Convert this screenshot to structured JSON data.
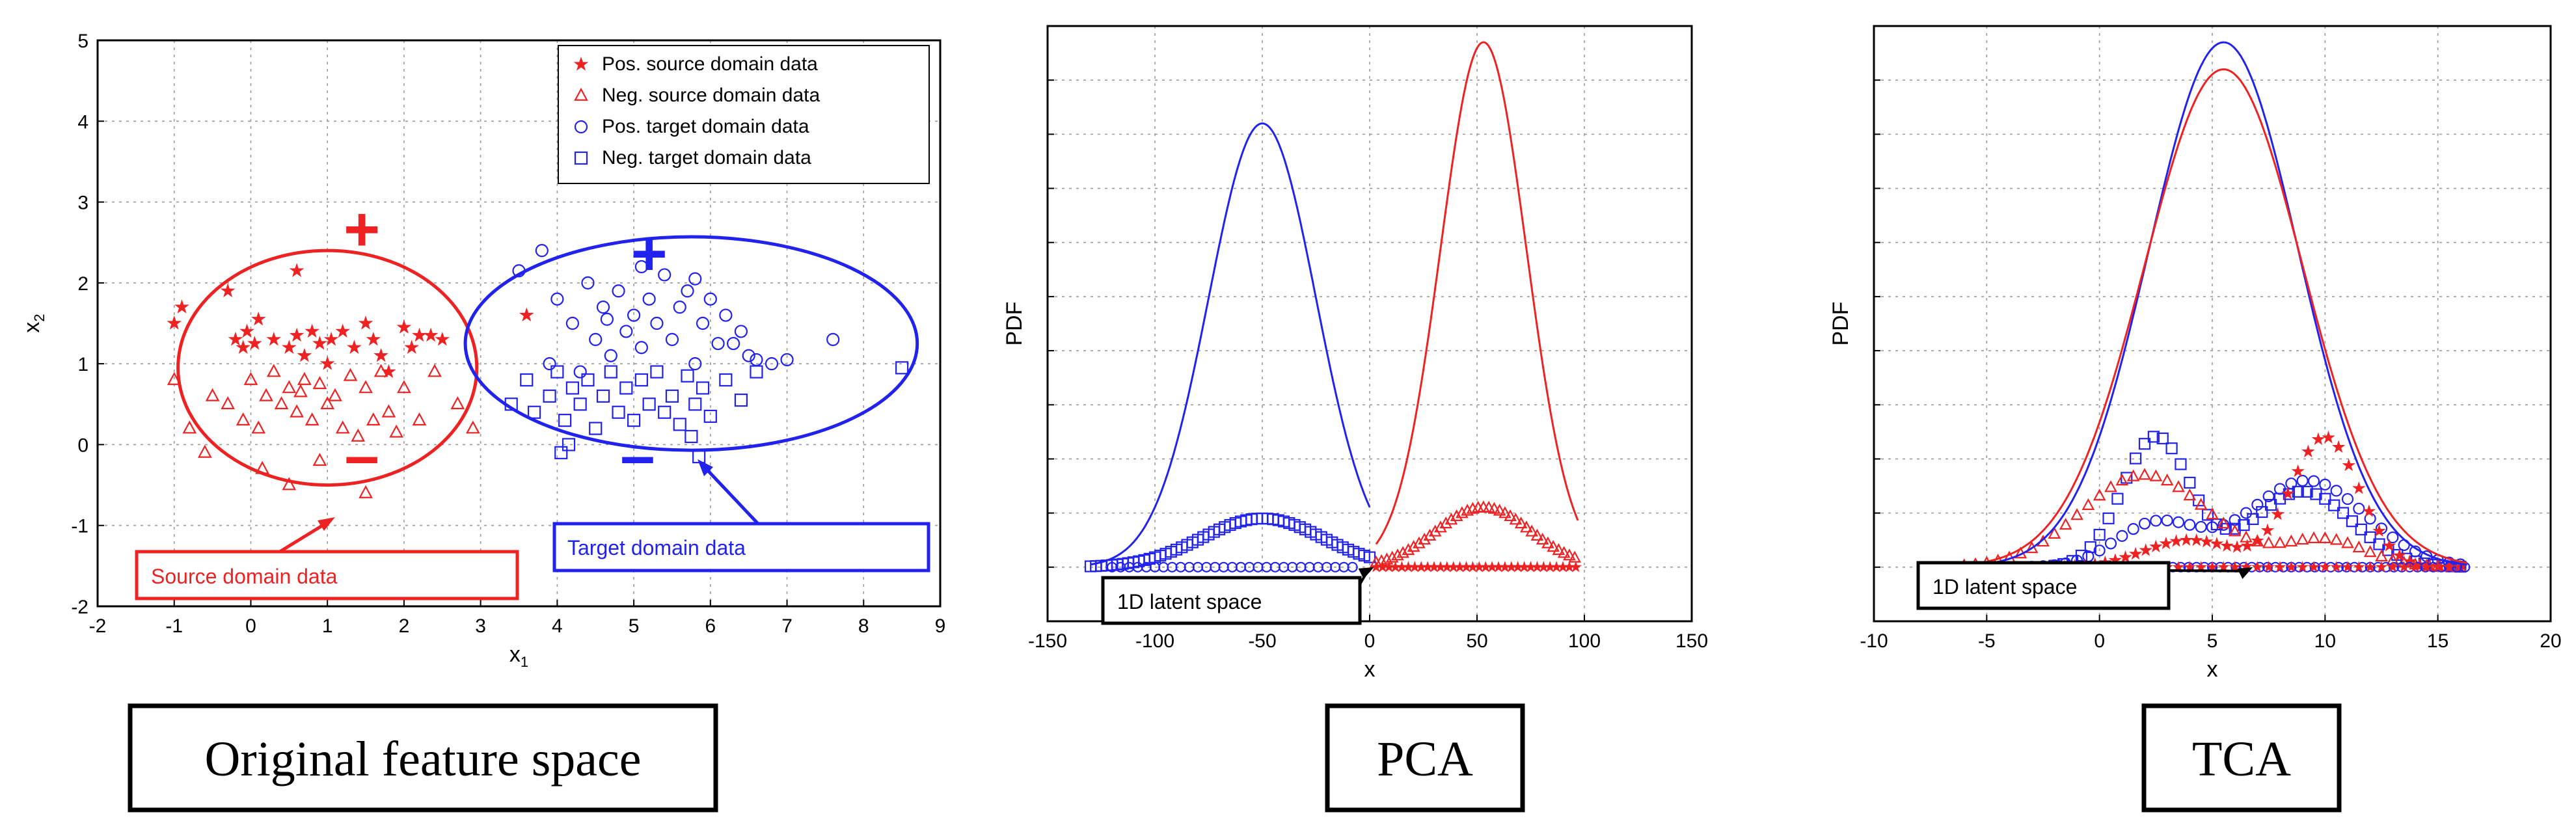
{
  "colors": {
    "red": "#ee2222",
    "blue": "#2222ee",
    "grid": "#9a9a9a"
  },
  "chart_data": [
    {
      "type": "scatter",
      "caption": "Original feature space",
      "xlabel": "x",
      "xlabel_sub": "1",
      "ylabel": "x",
      "ylabel_sub": "2",
      "xlim": [
        -2,
        9
      ],
      "ylim": [
        -2,
        5
      ],
      "xticks": [
        -2,
        -1,
        0,
        1,
        2,
        3,
        4,
        5,
        6,
        7,
        8,
        9
      ],
      "yticks": [
        -2,
        -1,
        0,
        1,
        2,
        3,
        4,
        5
      ],
      "legend_position": "top-right",
      "series": [
        {
          "name": "Pos. source domain data",
          "color": "red",
          "marker": "star",
          "points": [
            [
              -1.0,
              1.5
            ],
            [
              -0.9,
              1.7
            ],
            [
              -0.2,
              1.3
            ],
            [
              -0.1,
              1.2
            ],
            [
              -0.05,
              1.4
            ],
            [
              0.05,
              1.25
            ],
            [
              0.1,
              1.55
            ],
            [
              0.3,
              1.3
            ],
            [
              0.5,
              1.2
            ],
            [
              0.6,
              1.35
            ],
            [
              0.7,
              1.1
            ],
            [
              0.8,
              1.4
            ],
            [
              0.9,
              1.25
            ],
            [
              1.05,
              1.3
            ],
            [
              1.2,
              1.4
            ],
            [
              1.35,
              1.2
            ],
            [
              1.5,
              1.5
            ],
            [
              1.6,
              1.3
            ],
            [
              1.7,
              1.1
            ],
            [
              2.0,
              1.45
            ],
            [
              2.1,
              1.2
            ],
            [
              2.2,
              1.35
            ],
            [
              2.5,
              1.3
            ],
            [
              -0.3,
              1.9
            ],
            [
              0.6,
              2.15
            ],
            [
              3.6,
              1.6
            ],
            [
              1.0,
              1.0
            ],
            [
              1.8,
              0.9
            ],
            [
              2.35,
              1.35
            ]
          ]
        },
        {
          "name": "Neg. source domain data",
          "color": "red",
          "marker": "triangle",
          "points": [
            [
              -1.0,
              0.8
            ],
            [
              -0.5,
              0.6
            ],
            [
              -0.3,
              0.5
            ],
            [
              -0.1,
              0.3
            ],
            [
              0.0,
              0.8
            ],
            [
              0.1,
              0.2
            ],
            [
              0.2,
              0.6
            ],
            [
              0.3,
              0.9
            ],
            [
              0.4,
              0.5
            ],
            [
              0.5,
              0.7
            ],
            [
              0.6,
              0.4
            ],
            [
              0.7,
              0.8
            ],
            [
              0.8,
              0.3
            ],
            [
              0.9,
              0.75
            ],
            [
              1.0,
              0.5
            ],
            [
              1.1,
              0.6
            ],
            [
              1.2,
              0.2
            ],
            [
              1.3,
              0.85
            ],
            [
              1.4,
              0.1
            ],
            [
              1.5,
              0.7
            ],
            [
              1.6,
              0.3
            ],
            [
              1.7,
              0.9
            ],
            [
              1.8,
              0.4
            ],
            [
              1.9,
              0.15
            ],
            [
              2.0,
              0.7
            ],
            [
              2.2,
              0.3
            ],
            [
              2.4,
              0.9
            ],
            [
              2.7,
              0.5
            ],
            [
              2.9,
              0.2
            ],
            [
              -0.6,
              -0.1
            ],
            [
              0.15,
              -0.3
            ],
            [
              0.5,
              -0.5
            ],
            [
              0.9,
              -0.2
            ],
            [
              1.5,
              -0.6
            ],
            [
              -0.8,
              0.2
            ],
            [
              0.65,
              0.65
            ]
          ]
        },
        {
          "name": "Pos. target domain data",
          "color": "blue",
          "marker": "circle",
          "points": [
            [
              3.5,
              2.15
            ],
            [
              3.8,
              2.4
            ],
            [
              4.0,
              1.8
            ],
            [
              4.2,
              1.5
            ],
            [
              4.4,
              2.0
            ],
            [
              4.5,
              1.3
            ],
            [
              4.6,
              1.7
            ],
            [
              4.7,
              1.1
            ],
            [
              4.8,
              1.9
            ],
            [
              4.9,
              1.4
            ],
            [
              5.0,
              1.6
            ],
            [
              5.1,
              1.2
            ],
            [
              5.2,
              1.8
            ],
            [
              5.3,
              1.5
            ],
            [
              5.4,
              2.1
            ],
            [
              5.5,
              1.3
            ],
            [
              5.6,
              1.7
            ],
            [
              5.7,
              1.9
            ],
            [
              5.8,
              1.0
            ],
            [
              5.9,
              1.5
            ],
            [
              6.0,
              1.8
            ],
            [
              6.1,
              1.25
            ],
            [
              6.2,
              1.6
            ],
            [
              6.4,
              1.4
            ],
            [
              6.5,
              1.1
            ],
            [
              6.6,
              1.05
            ],
            [
              6.8,
              1.0
            ],
            [
              7.0,
              1.05
            ],
            [
              7.6,
              1.3
            ],
            [
              3.9,
              1.0
            ],
            [
              4.3,
              0.9
            ],
            [
              5.8,
              2.05
            ],
            [
              5.1,
              2.2
            ],
            [
              4.65,
              1.55
            ],
            [
              6.3,
              1.25
            ]
          ]
        },
        {
          "name": "Neg. target domain data",
          "color": "blue",
          "marker": "square",
          "points": [
            [
              3.6,
              0.8
            ],
            [
              3.7,
              0.4
            ],
            [
              3.9,
              0.6
            ],
            [
              4.0,
              0.9
            ],
            [
              4.1,
              0.3
            ],
            [
              4.2,
              0.7
            ],
            [
              4.3,
              0.5
            ],
            [
              4.4,
              0.8
            ],
            [
              4.5,
              0.2
            ],
            [
              4.6,
              0.6
            ],
            [
              4.7,
              0.9
            ],
            [
              4.8,
              0.4
            ],
            [
              4.9,
              0.7
            ],
            [
              5.0,
              0.3
            ],
            [
              5.1,
              0.8
            ],
            [
              5.2,
              0.5
            ],
            [
              5.3,
              0.9
            ],
            [
              5.4,
              0.4
            ],
            [
              5.5,
              0.6
            ],
            [
              5.6,
              0.25
            ],
            [
              5.7,
              0.85
            ],
            [
              5.8,
              0.5
            ],
            [
              5.9,
              0.7
            ],
            [
              6.0,
              0.35
            ],
            [
              6.2,
              0.8
            ],
            [
              6.4,
              0.55
            ],
            [
              6.6,
              0.9
            ],
            [
              5.75,
              0.1
            ],
            [
              4.15,
              0.0
            ],
            [
              8.5,
              0.95
            ],
            [
              5.85,
              -0.15
            ],
            [
              3.4,
              0.5
            ],
            [
              4.05,
              -0.1
            ]
          ]
        }
      ],
      "annotations": {
        "source_plus": "+",
        "source_minus": "–",
        "target_plus": "+",
        "target_minus": "–",
        "source_box": "Source domain data",
        "target_box": "Target domain data"
      }
    },
    {
      "type": "line",
      "caption": "PCA",
      "xlabel": "x",
      "ylabel": "PDF",
      "xlim": [
        -150,
        150
      ],
      "xticks": [
        -150,
        -100,
        -50,
        0,
        50,
        100,
        150
      ],
      "ylim": [
        -0.1,
        1.0
      ],
      "series": [
        {
          "name": "",
          "color": "blue",
          "mean": -50,
          "sd": 25,
          "peak": 0.82,
          "x_range": [
            -130,
            0
          ]
        },
        {
          "name": "",
          "color": "red",
          "mean": 53,
          "sd": 20,
          "peak": 0.97,
          "x_range": [
            3,
            97
          ]
        }
      ],
      "markers": [
        {
          "color": "blue",
          "marker": "square",
          "mean": -50,
          "sd": 28,
          "peak": 0.09,
          "x_range": [
            -130,
            0
          ],
          "step": 2.5
        },
        {
          "color": "red",
          "marker": "triangle",
          "mean": 53,
          "sd": 22,
          "peak": 0.11,
          "x_range": [
            3,
            97
          ],
          "step": 2.5
        }
      ],
      "latent_space": [
        {
          "color": "blue",
          "x_range": [
            -120,
            -5
          ],
          "step": 4
        },
        {
          "color": "red",
          "x_range": [
            3,
            97
          ],
          "step": 3
        }
      ],
      "annotation": "1D latent space"
    },
    {
      "type": "line",
      "caption": "TCA",
      "xlabel": "x",
      "ylabel": "PDF",
      "xlim": [
        -10,
        20
      ],
      "xticks": [
        -10,
        -5,
        0,
        5,
        10,
        15,
        20
      ],
      "ylim": [
        -0.1,
        1.0
      ],
      "series": [
        {
          "name": "",
          "color": "blue",
          "mean": 5.5,
          "sd": 3.3,
          "peak": 0.97,
          "x_range": [
            -6,
            16.3
          ]
        },
        {
          "name": "",
          "color": "red",
          "mean": 5.5,
          "sd": 3.5,
          "peak": 0.92,
          "x_range": [
            -6,
            16.3
          ]
        }
      ],
      "bimodal_markers": [
        {
          "color": "blue",
          "marker": "square",
          "modes": [
            [
              2.5,
              1.5,
              0.24
            ],
            [
              9.0,
              2.2,
              0.14
            ]
          ],
          "x_range": [
            -2,
            16.3
          ],
          "step": 0.4
        },
        {
          "color": "blue",
          "marker": "circle",
          "modes": [
            [
              2.5,
              1.8,
              0.08
            ],
            [
              9.2,
              2.6,
              0.16
            ]
          ],
          "x_range": [
            -6,
            16.3
          ],
          "step": 0.5
        },
        {
          "color": "red",
          "marker": "triangle",
          "modes": [
            [
              2.0,
              2.8,
              0.17
            ],
            [
              10,
              1.8,
              0.05
            ]
          ],
          "x_range": [
            -6,
            16.3
          ],
          "step": 0.5
        },
        {
          "color": "red",
          "marker": "star",
          "modes": [
            [
              4.0,
              2.0,
              0.05
            ],
            [
              10,
              1.5,
              0.24
            ]
          ],
          "x_range": [
            -2,
            16.3
          ],
          "step": 0.45
        }
      ],
      "latent_space": [
        {
          "color": "blue",
          "x_range": [
            -2,
            16.3
          ],
          "step": 0.35
        },
        {
          "color": "red",
          "x_range": [
            -2,
            15.5
          ],
          "step": 0.5
        }
      ],
      "annotation": "1D latent space"
    }
  ]
}
